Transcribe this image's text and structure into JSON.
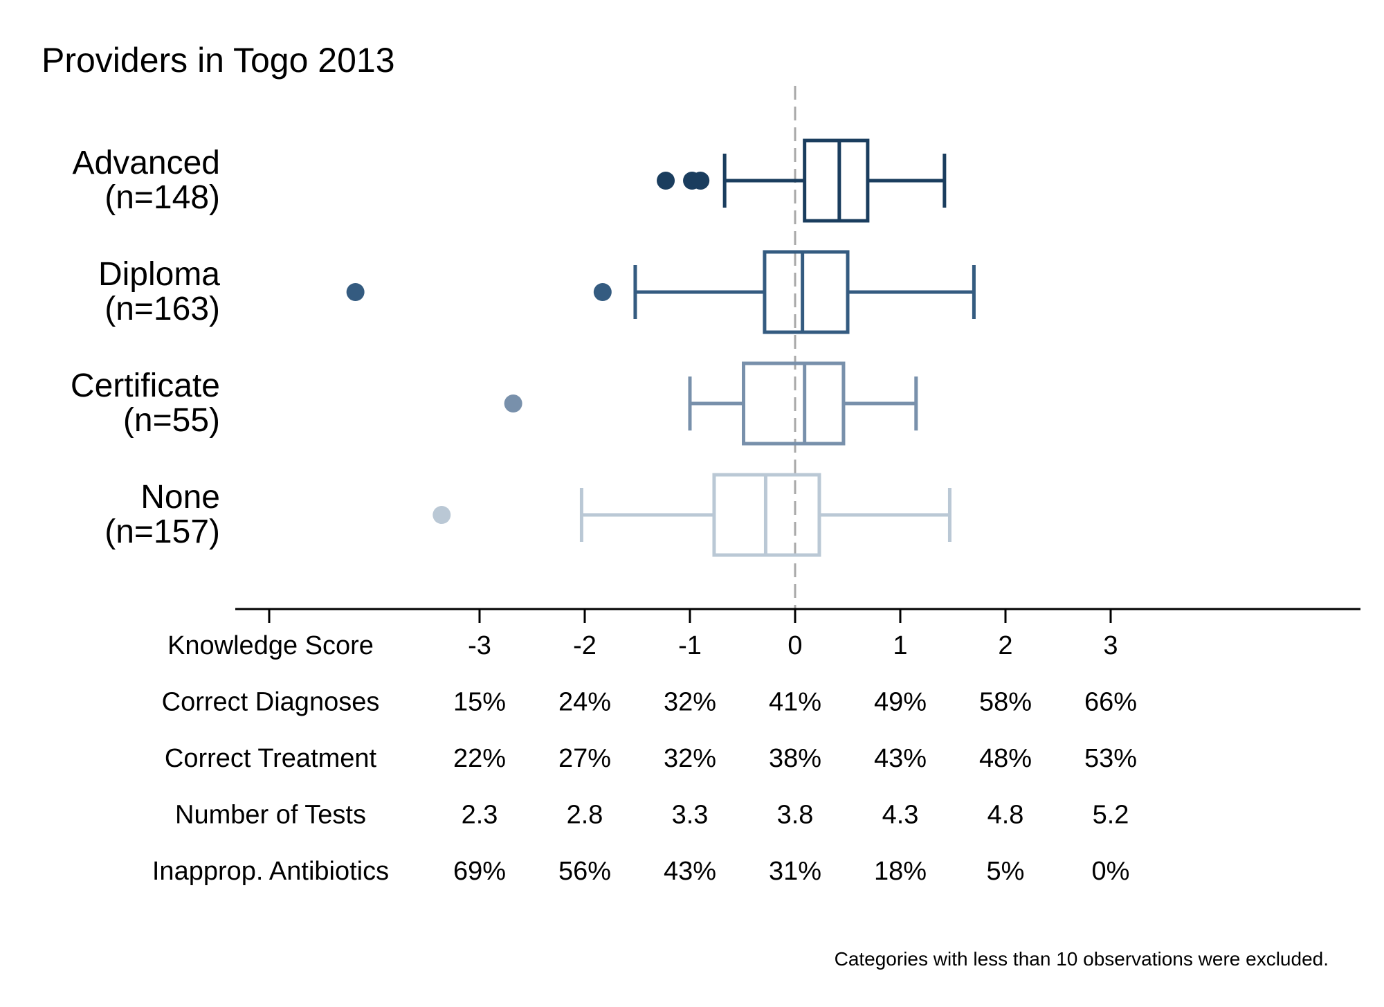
{
  "chart_data": {
    "type": "boxplot",
    "title": "Providers in Togo 2013",
    "orientation": "horizontal",
    "xlim": [
      -5,
      7.7
    ],
    "reference_line": 0,
    "grid": false,
    "legend": "none",
    "categories": [
      {
        "label": "Advanced",
        "n_label": "(n=148)",
        "color": "#1a3d5e",
        "whisker_low": -0.67,
        "q1": 0.09,
        "median": 0.42,
        "q3": 0.69,
        "whisker_high": 1.42,
        "outliers": [
          -1.23,
          -0.98,
          -0.9
        ]
      },
      {
        "label": "Diploma",
        "n_label": "(n=163)",
        "color": "#345b80",
        "whisker_low": -1.52,
        "q1": -0.29,
        "median": 0.07,
        "q3": 0.5,
        "whisker_high": 1.7,
        "outliers": [
          -4.18,
          -1.83
        ]
      },
      {
        "label": "Certificate",
        "n_label": "(n=55)",
        "color": "#7890ab",
        "whisker_low": -1.0,
        "q1": -0.49,
        "median": 0.09,
        "q3": 0.46,
        "whisker_high": 1.15,
        "outliers": [
          -2.68
        ]
      },
      {
        "label": "None",
        "n_label": "(n=157)",
        "color": "#bac8d5",
        "whisker_low": -2.03,
        "q1": -0.77,
        "median": -0.28,
        "q3": 0.23,
        "whisker_high": 1.47,
        "outliers": [
          -3.36
        ]
      }
    ],
    "x_ticks": [
      -5,
      -3,
      -2,
      -1,
      0,
      1,
      2,
      3
    ],
    "table": {
      "columns": [
        -3,
        -2,
        -1,
        0,
        1,
        2,
        3
      ],
      "rows": [
        {
          "label": "Knowledge Score",
          "values": [
            "-3",
            "-2",
            "-1",
            "0",
            "1",
            "2",
            "3"
          ]
        },
        {
          "label": "Correct Diagnoses",
          "values": [
            "15%",
            "24%",
            "32%",
            "41%",
            "49%",
            "58%",
            "66%"
          ]
        },
        {
          "label": "Correct Treatment",
          "values": [
            "22%",
            "27%",
            "32%",
            "38%",
            "43%",
            "48%",
            "53%"
          ]
        },
        {
          "label": "Number of Tests",
          "values": [
            "2.3",
            "2.8",
            "3.3",
            "3.8",
            "4.3",
            "4.8",
            "5.2"
          ]
        },
        {
          "label": "Inapprop. Antibiotics",
          "values": [
            "69%",
            "56%",
            "43%",
            "31%",
            "18%",
            "5%",
            "0%"
          ]
        }
      ]
    },
    "note": "Categories with less than 10 observations were excluded."
  }
}
